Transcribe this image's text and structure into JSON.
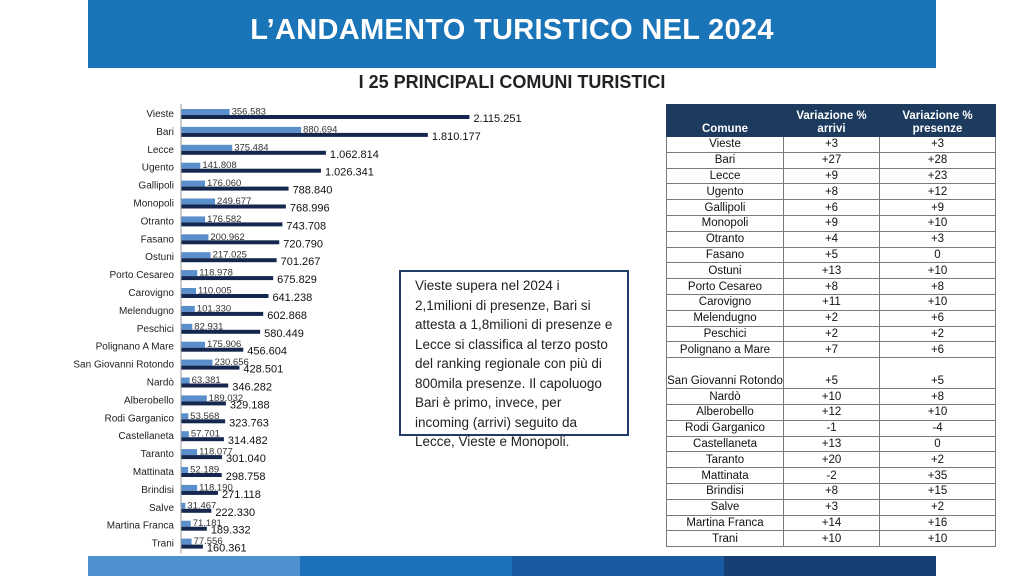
{
  "header": {
    "title": "L’ANDAMENTO TURISTICO NEL 2024",
    "subtitle": "I 25 PRINCIPALI COMUNI TURISTICI"
  },
  "colors": {
    "banner": "#1a74b8",
    "arrivi": "#5b8fcc",
    "presenze": "#15264f",
    "table_header": "#1d3b5f",
    "bottom_bar": [
      "#4f90cf",
      "#1d72bb",
      "#1a5aa0",
      "#163f73"
    ]
  },
  "chart_data": {
    "type": "bar",
    "orientation": "horizontal",
    "categories": [
      "Vieste",
      "Bari",
      "Lecce",
      "Ugento",
      "Gallipoli",
      "Monopoli",
      "Otranto",
      "Fasano",
      "Ostuni",
      "Porto Cesareo",
      "Carovigno",
      "Melendugno",
      "Peschici",
      "Polignano A Mare",
      "San Giovanni Rotondo",
      "Nardò",
      "Alberobello",
      "Rodi Garganico",
      "Castellaneta",
      "Taranto",
      "Mattinata",
      "Brindisi",
      "Salve",
      "Martina Franca",
      "Trani"
    ],
    "series": [
      {
        "values": [
          356583,
          880694,
          375484,
          141808,
          176060,
          249677,
          176582,
          200962,
          217025,
          118978,
          110005,
          101330,
          82931,
          175906,
          230656,
          63381,
          189032,
          53568,
          57701,
          118077,
          52189,
          118190,
          31467,
          71181,
          77556
        ],
        "labels": [
          "356.583",
          "880.694",
          "375.484",
          "141.808",
          "176.060",
          "249.677",
          "176.582",
          "200.962",
          "217.025",
          "118.978",
          "110.005",
          "101.330",
          "82.931",
          "175.906",
          "230.656",
          "63.381",
          "189.032",
          "53.568",
          "57.701",
          "118.077",
          "52.189",
          "118.190",
          "31.467",
          "71.181",
          "77.556"
        ]
      },
      {
        "values": [
          2115251,
          1810177,
          1062814,
          1026341,
          788840,
          768996,
          743708,
          720790,
          701267,
          675829,
          641238,
          602868,
          580449,
          456604,
          428501,
          346282,
          329188,
          323763,
          314482,
          301040,
          298758,
          271118,
          222330,
          189332,
          160361
        ],
        "labels": [
          "2.115.251",
          "1.810.177",
          "1.062.814",
          "1.026.341",
          "788.840",
          "768.996",
          "743.708",
          "720.790",
          "701.267",
          "675.829",
          "641.238",
          "602.868",
          "580.449",
          "456.604",
          "428.501",
          "346.282",
          "329.188",
          "323.763",
          "314.482",
          "301.040",
          "298.758",
          "271.118",
          "222.330",
          "189.332",
          "160.361"
        ]
      }
    ],
    "xlim": [
      0,
      2200000
    ],
    "grid": false,
    "legend": "none"
  },
  "callout": {
    "text": "Vieste supera nel 2024 i 2,1milioni di presenze, Bari si attesta a 1,8milioni di presenze e Lecce si classifica al terzo posto del ranking regionale con più di 800mila presenze. Il capoluogo Bari è primo, invece, per incoming (arrivi) seguito da Lecce, Vieste e Monopoli."
  },
  "table": {
    "headers": {
      "comune": "Comune",
      "arrivi_line1": "Variazione %",
      "arrivi_line2": "arrivi",
      "presenze_line1": "Variazione %",
      "presenze_line2": "presenze"
    },
    "rows": [
      {
        "comune": "Vieste",
        "arrivi": "+3",
        "presenze": "+3"
      },
      {
        "comune": "Bari",
        "arrivi": "+27",
        "presenze": "+28"
      },
      {
        "comune": "Lecce",
        "arrivi": "+9",
        "presenze": "+23"
      },
      {
        "comune": "Ugento",
        "arrivi": "+8",
        "presenze": "+12"
      },
      {
        "comune": "Gallipoli",
        "arrivi": "+6",
        "presenze": "+9"
      },
      {
        "comune": "Monopoli",
        "arrivi": "+9",
        "presenze": "+10"
      },
      {
        "comune": "Otranto",
        "arrivi": "+4",
        "presenze": "+3"
      },
      {
        "comune": "Fasano",
        "arrivi": "+5",
        "presenze": "0"
      },
      {
        "comune": "Ostuni",
        "arrivi": "+13",
        "presenze": "+10"
      },
      {
        "comune": "Porto Cesareo",
        "arrivi": "+8",
        "presenze": "+8"
      },
      {
        "comune": "Carovigno",
        "arrivi": "+11",
        "presenze": "+10"
      },
      {
        "comune": "Melendugno",
        "arrivi": "+2",
        "presenze": "+6"
      },
      {
        "comune": "Peschici",
        "arrivi": "+2",
        "presenze": "+2"
      },
      {
        "comune": "Polignano a Mare",
        "arrivi": "+7",
        "presenze": "+6"
      },
      {
        "comune": "San Giovanni Rotondo",
        "arrivi": "+5",
        "presenze": "+5"
      },
      {
        "comune": "Nardò",
        "arrivi": "+10",
        "presenze": "+8"
      },
      {
        "comune": "Alberobello",
        "arrivi": "+12",
        "presenze": "+10"
      },
      {
        "comune": "Rodi Garganico",
        "arrivi": "-1",
        "presenze": "-4"
      },
      {
        "comune": "Castellaneta",
        "arrivi": "+13",
        "presenze": "0"
      },
      {
        "comune": "Taranto",
        "arrivi": "+20",
        "presenze": "+2"
      },
      {
        "comune": "Mattinata",
        "arrivi": "-2",
        "presenze": "+35"
      },
      {
        "comune": "Brindisi",
        "arrivi": "+8",
        "presenze": "+15"
      },
      {
        "comune": "Salve",
        "arrivi": "+3",
        "presenze": "+2"
      },
      {
        "comune": "Martina Franca",
        "arrivi": "+14",
        "presenze": "+16"
      },
      {
        "comune": "Trani",
        "arrivi": "+10",
        "presenze": "+10"
      }
    ]
  }
}
